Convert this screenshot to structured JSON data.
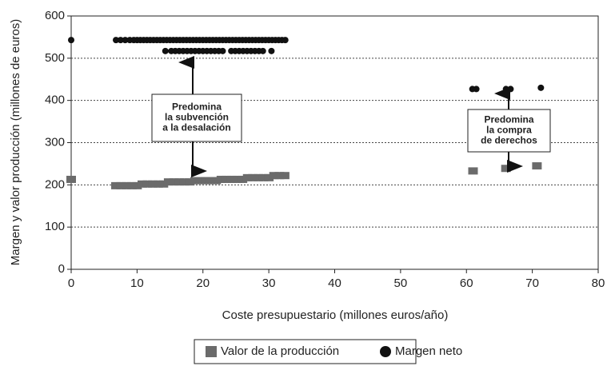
{
  "chart_data": {
    "type": "scatter",
    "x_label": "Coste presupuestario (millones euros/año)",
    "y_label": "Margen y valor producción (millones de euros)",
    "xlim": [
      0,
      80
    ],
    "xticks": [
      0,
      10,
      20,
      30,
      40,
      50,
      60,
      70,
      80
    ],
    "ylim": [
      0,
      600
    ],
    "yticks": [
      0,
      100,
      200,
      300,
      400,
      500,
      600
    ],
    "grid": true,
    "legend": "bottom",
    "series": [
      {
        "name": "Valor de la producción",
        "color": "#6b6b6b",
        "marker": "square",
        "x": [
          0,
          6.8,
          7.6,
          8.4,
          9.2,
          10,
          10.8,
          11.6,
          12.4,
          13.2,
          14,
          14.8,
          15.6,
          16.4,
          17.2,
          18,
          18.8,
          19.6,
          20.4,
          21.2,
          22,
          22.8,
          23.6,
          24.4,
          25.2,
          26,
          26.8,
          27.6,
          28.4,
          29.2,
          30,
          30.8,
          31.6,
          32.4,
          61,
          66,
          70.7
        ],
        "values": [
          213,
          198,
          198,
          198,
          198,
          198,
          202,
          202,
          202,
          202,
          202,
          207,
          207,
          207,
          207,
          207,
          210,
          210,
          210,
          210,
          210,
          213,
          213,
          213,
          213,
          213,
          217,
          217,
          217,
          217,
          217,
          222,
          222,
          222,
          233,
          239,
          245
        ]
      },
      {
        "name": "Margen neto",
        "color": "#111111",
        "marker": "circle",
        "x": [
          0,
          6.8,
          7.5,
          8.2,
          8.9,
          9.5,
          10,
          10.5,
          11,
          11.5,
          12,
          12.5,
          13,
          13.5,
          14,
          14.5,
          15,
          15.5,
          16,
          16.5,
          17,
          17.5,
          18,
          18.5,
          19,
          19.5,
          20,
          20.5,
          21,
          21.5,
          22,
          22.5,
          23,
          23.5,
          24,
          24.5,
          25,
          25.5,
          26,
          26.5,
          27,
          27.5,
          28,
          28.5,
          29,
          29.5,
          30,
          30.5,
          31,
          31.5,
          32,
          32.5,
          14.3,
          15.2,
          15.8,
          16.4,
          17,
          17.6,
          18.2,
          18.8,
          19.4,
          20,
          20.6,
          21.2,
          21.8,
          22.4,
          23,
          24.3,
          24.9,
          25.5,
          26.1,
          26.7,
          27.3,
          27.9,
          28.5,
          29.1,
          30.4,
          60.9,
          61.5,
          66,
          66.7,
          71.3
        ],
        "values": [
          543,
          543,
          543,
          543,
          543,
          543,
          543,
          543,
          543,
          543,
          543,
          543,
          543,
          543,
          543,
          543,
          543,
          543,
          543,
          543,
          543,
          543,
          543,
          543,
          543,
          543,
          543,
          543,
          543,
          543,
          543,
          543,
          543,
          543,
          543,
          543,
          543,
          543,
          543,
          543,
          543,
          543,
          543,
          543,
          543,
          543,
          543,
          543,
          543,
          543,
          543,
          543,
          517,
          517,
          517,
          517,
          517,
          517,
          517,
          517,
          517,
          517,
          517,
          517,
          517,
          517,
          517,
          517,
          517,
          517,
          517,
          517,
          517,
          517,
          517,
          517,
          517,
          427,
          427,
          427,
          427,
          430
        ]
      }
    ],
    "annotations": [
      {
        "lines": [
          "Predomina",
          "la subvención",
          "a la desalación"
        ]
      },
      {
        "lines": [
          "Predomina",
          "la compra",
          "de derechos"
        ]
      }
    ]
  }
}
